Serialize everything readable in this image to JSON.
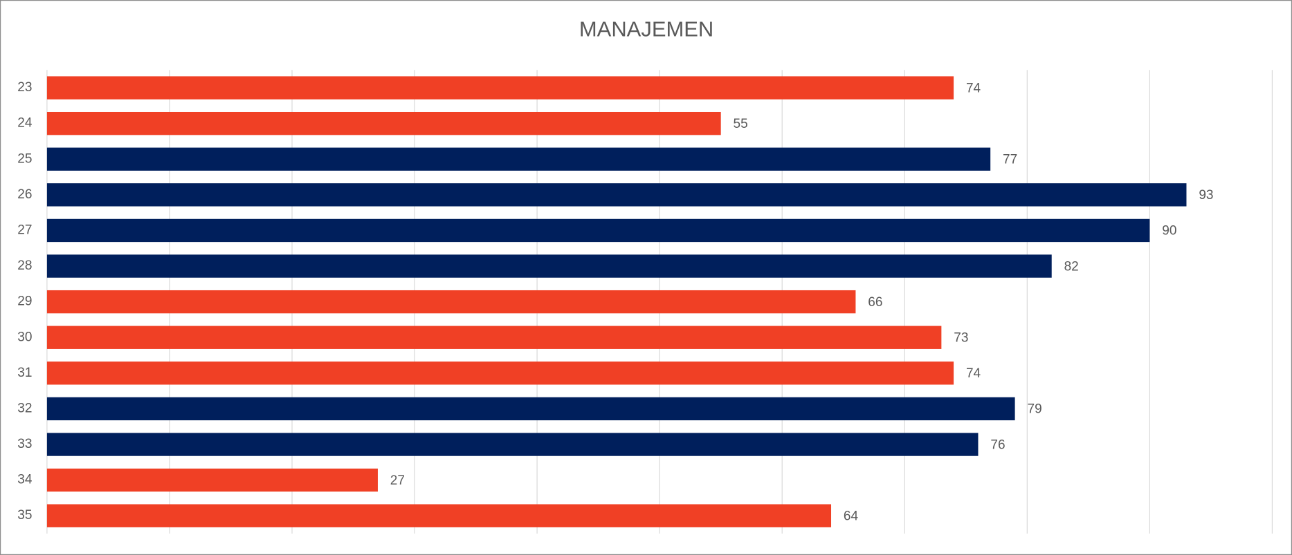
{
  "chart_data": {
    "type": "barh",
    "title": "MANAJEMEN",
    "categories": [
      "23",
      "24",
      "25",
      "26",
      "27",
      "28",
      "29",
      "30",
      "31",
      "32",
      "33",
      "34",
      "35"
    ],
    "values": [
      74,
      55,
      77,
      93,
      90,
      82,
      66,
      73,
      74,
      79,
      76,
      27,
      64
    ],
    "colors": [
      "#f04025",
      "#f04025",
      "#001f5c",
      "#001f5c",
      "#001f5c",
      "#001f5c",
      "#f04025",
      "#f04025",
      "#f04025",
      "#001f5c",
      "#001f5c",
      "#f04025",
      "#f04025"
    ],
    "xlim": [
      0,
      100
    ],
    "xticks": [
      0,
      10,
      20,
      30,
      40,
      50,
      60,
      70,
      80,
      90,
      100
    ],
    "grid": true
  }
}
